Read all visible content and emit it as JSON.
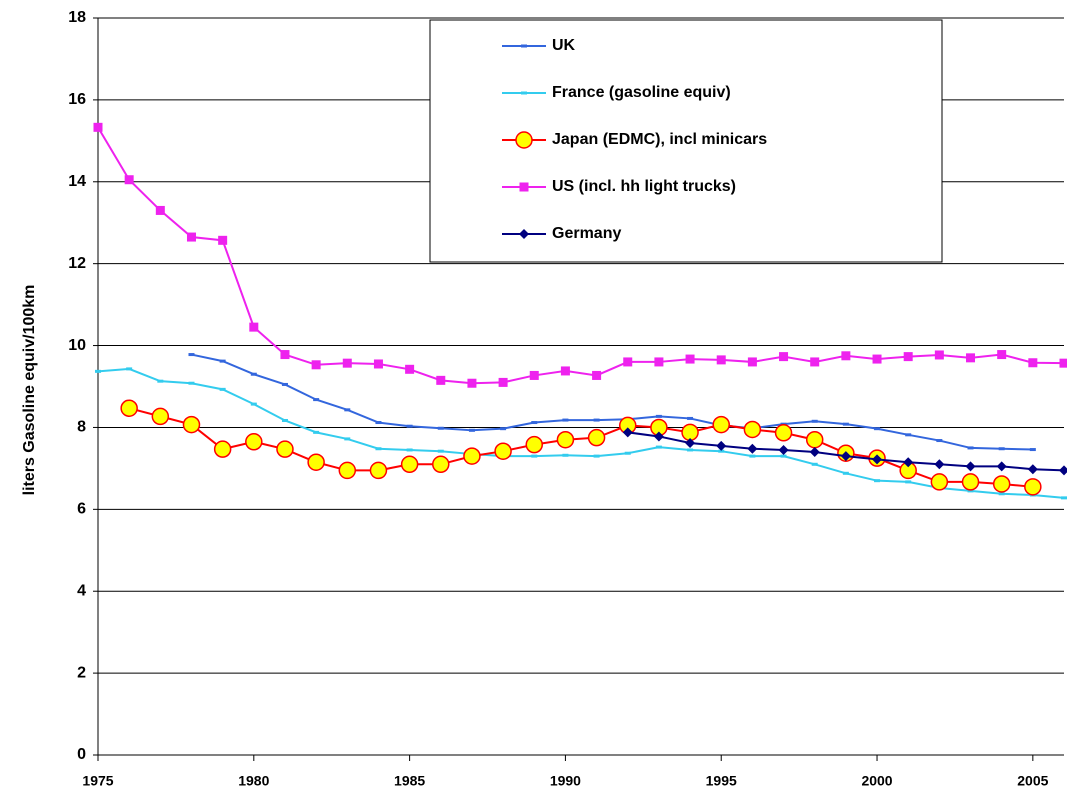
{
  "chart_data": {
    "type": "line",
    "y_label": "liters Gasoline equiv/100km",
    "x": [
      1975,
      1976,
      1977,
      1978,
      1979,
      1980,
      1981,
      1982,
      1983,
      1984,
      1985,
      1986,
      1987,
      1988,
      1989,
      1990,
      1991,
      1992,
      1993,
      1994,
      1995,
      1996,
      1997,
      1998,
      1999,
      2000,
      2001,
      2002,
      2003,
      2004,
      2005,
      2006
    ],
    "xlim": [
      1975,
      2006
    ],
    "xticks": [
      1975,
      1980,
      1985,
      1990,
      1995,
      2000,
      2005
    ],
    "ylim": [
      0,
      18
    ],
    "yticks": [
      0,
      2,
      4,
      6,
      8,
      10,
      12,
      14,
      16,
      18
    ],
    "grid": true,
    "legend": "top-center",
    "series": [
      {
        "name": "UK",
        "color": "#3366dd",
        "marker": "dash",
        "values": [
          null,
          null,
          null,
          9.78,
          9.62,
          9.3,
          9.05,
          8.68,
          8.43,
          8.12,
          8.03,
          7.98,
          7.93,
          7.97,
          8.12,
          8.18,
          8.18,
          8.2,
          8.27,
          8.22,
          8.05,
          7.98,
          8.08,
          8.15,
          8.08,
          7.97,
          7.82,
          7.68,
          7.5,
          7.48,
          7.46,
          null
        ]
      },
      {
        "name": "France (gasoline equiv)",
        "color": "#33ccee",
        "marker": "dash",
        "values": [
          9.37,
          9.43,
          9.13,
          9.08,
          8.93,
          8.57,
          8.17,
          7.88,
          7.72,
          7.48,
          7.45,
          7.42,
          7.35,
          7.3,
          7.3,
          7.32,
          7.3,
          7.37,
          7.52,
          7.45,
          7.42,
          7.3,
          7.3,
          7.1,
          6.88,
          6.7,
          6.67,
          6.52,
          6.45,
          6.38,
          6.35,
          6.28
        ]
      },
      {
        "name": "Japan (EDMC), incl minicars",
        "color": "#ff0000",
        "marker": "circle",
        "values": [
          null,
          8.47,
          8.27,
          8.07,
          7.47,
          7.65,
          7.47,
          7.15,
          6.95,
          6.95,
          7.1,
          7.1,
          7.3,
          7.42,
          7.58,
          7.7,
          7.75,
          8.05,
          8.0,
          7.88,
          8.07,
          7.95,
          7.87,
          7.7,
          7.37,
          7.25,
          6.95,
          6.67,
          6.67,
          6.62,
          6.55,
          null
        ]
      },
      {
        "name": "US (incl. hh light trucks)",
        "color": "#ee22ee",
        "marker": "square",
        "values": [
          15.33,
          14.05,
          13.3,
          12.65,
          12.57,
          10.45,
          9.78,
          9.53,
          9.57,
          9.55,
          9.42,
          9.15,
          9.08,
          9.1,
          9.27,
          9.38,
          9.27,
          9.6,
          9.6,
          9.67,
          9.65,
          9.6,
          9.73,
          9.6,
          9.75,
          9.67,
          9.73,
          9.77,
          9.7,
          9.78,
          9.58,
          9.57
        ]
      },
      {
        "name": "Germany",
        "color": "#000080",
        "marker": "diamond",
        "values": [
          null,
          null,
          null,
          null,
          null,
          null,
          null,
          null,
          null,
          null,
          null,
          null,
          null,
          null,
          null,
          null,
          null,
          7.88,
          7.78,
          7.62,
          7.55,
          7.48,
          7.45,
          7.4,
          7.3,
          7.22,
          7.15,
          7.1,
          7.05,
          7.05,
          6.98,
          6.95
        ]
      }
    ]
  }
}
